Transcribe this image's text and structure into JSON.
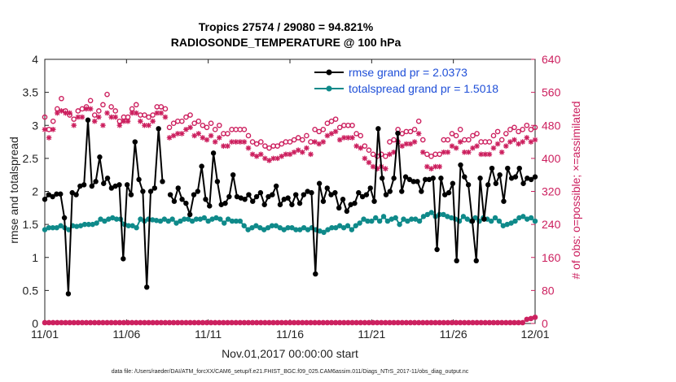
{
  "chart_data": {
    "type": "line",
    "title_line1": "Tropics 27574 / 29080 = 94.821%",
    "title_line2": "RADIOSONDE_TEMPERATURE @ 100 hPa",
    "ylabel_left": "rmse and totalspread",
    "ylabel_right": "# of obs: o=possible; ×=assimilated",
    "xlabel": "Nov.01,2017 00:00:00 start",
    "footer": "data file: /Users/raeder/DAI/ATM_forcXX/CAM6_setup/f.e21.FHIST_BGC.f09_025.CAM6assim.011/Diags_NTrS_2017-11/obs_diag_output.nc",
    "xlim": [
      0,
      30
    ],
    "ylim_left": [
      0,
      4
    ],
    "ylim_right": [
      0,
      640
    ],
    "x_tick_labels": [
      "11/01",
      "11/06",
      "11/11",
      "11/16",
      "11/21",
      "11/26",
      "12/01"
    ],
    "x_tick_values": [
      0,
      5,
      10,
      15,
      20,
      25,
      30
    ],
    "y_left_ticks": [
      "0",
      "0.5",
      "1",
      "1.5",
      "2",
      "2.5",
      "3",
      "3.5",
      "4"
    ],
    "y_right_ticks": [
      "0",
      "80",
      "160",
      "240",
      "320",
      "400",
      "480",
      "560",
      "640"
    ],
    "legend": [
      {
        "name": "rmse grand pr = 2.0373",
        "color": "#000000"
      },
      {
        "name": "totalspread grand pr = 1.5018",
        "color": "#0f8a8a"
      }
    ],
    "colors": {
      "rmse": "#000000",
      "spread": "#0f8a8a",
      "obs": "#cc1f5e"
    },
    "series": [
      {
        "name": "rmse",
        "values": [
          1.88,
          1.95,
          1.92,
          1.96,
          1.96,
          1.6,
          0.45,
          1.98,
          1.95,
          2.08,
          2.1,
          3.08,
          2.08,
          2.15,
          2.52,
          2.12,
          2.2,
          2.05,
          2.08,
          2.1,
          0.98,
          2.1,
          1.95,
          2.75,
          2.18,
          2.0,
          0.55,
          2.0,
          2.05,
          2.95,
          2.15,
          null,
          1.95,
          1.85,
          2.05,
          1.88,
          1.82,
          1.65,
          1.95,
          2.0,
          2.38,
          1.88,
          1.78,
          2.58,
          2.15,
          1.8,
          1.82,
          1.92,
          2.25,
          1.92,
          1.9,
          1.88,
          1.95,
          1.85,
          1.92,
          1.98,
          1.8,
          1.92,
          1.95,
          2.08,
          1.8,
          1.88,
          1.9,
          1.8,
          1.95,
          1.82,
          1.95,
          2.0,
          1.98,
          0.75,
          2.12,
          1.85,
          2.05,
          1.95,
          1.98,
          1.75,
          1.88,
          1.7,
          1.8,
          1.82,
          1.98,
          1.92,
          1.95,
          2.05,
          1.85,
          2.95,
          2.2,
          1.95,
          2.0,
          2.2,
          2.88,
          2.0,
          2.22,
          2.18,
          2.15,
          2.15,
          2.0,
          2.18,
          2.18,
          2.2,
          1.12,
          2.2,
          1.95,
          1.98,
          2.12,
          0.95,
          2.4,
          2.22,
          2.1,
          1.55,
          0.95,
          2.2,
          1.58,
          2.1,
          2.35,
          2.12,
          2.25,
          1.85,
          2.35,
          2.2,
          2.22,
          2.35,
          2.12,
          2.2,
          2.18,
          2.22
        ]
      },
      {
        "name": "totalspread",
        "values": [
          1.42,
          1.45,
          1.45,
          1.45,
          1.48,
          1.45,
          1.42,
          1.48,
          1.47,
          1.48,
          1.5,
          1.5,
          1.5,
          1.52,
          1.58,
          1.55,
          1.58,
          1.6,
          1.58,
          1.58,
          1.5,
          1.48,
          1.48,
          1.45,
          1.58,
          1.55,
          1.58,
          1.57,
          1.56,
          1.55,
          1.58,
          1.55,
          1.58,
          1.52,
          1.55,
          1.58,
          1.58,
          1.55,
          1.58,
          1.58,
          1.6,
          1.55,
          1.58,
          1.6,
          1.58,
          1.52,
          1.58,
          1.55,
          1.55,
          1.55,
          1.48,
          1.42,
          1.45,
          1.48,
          1.45,
          1.42,
          1.45,
          1.48,
          1.48,
          1.45,
          1.42,
          1.45,
          1.45,
          1.42,
          1.42,
          1.45,
          1.42,
          1.45,
          1.42,
          1.4,
          1.38,
          1.42,
          1.45,
          1.45,
          1.48,
          1.45,
          1.48,
          1.42,
          1.48,
          1.52,
          1.58,
          1.55,
          1.55,
          1.6,
          1.55,
          1.62,
          1.55,
          1.58,
          1.6,
          1.5,
          1.58,
          1.55,
          1.58,
          1.58,
          1.55,
          1.62,
          1.65,
          1.68,
          1.62,
          1.65,
          1.65,
          1.62,
          1.6,
          1.58,
          1.55,
          1.62,
          1.58,
          1.55,
          1.6,
          1.55,
          1.6,
          1.58,
          1.55,
          1.6,
          1.55,
          1.48,
          1.5,
          1.52,
          1.55,
          1.6,
          1.62,
          1.58,
          1.6,
          1.55
        ]
      },
      {
        "name": "possible",
        "values": [
          500,
          470,
          490,
          520,
          545,
          515,
          505,
          495,
          515,
          520,
          525,
          540,
          505,
          515,
          530,
          555,
          525,
          515,
          490,
          500,
          500,
          520,
          530,
          505,
          505,
          500,
          505,
          525,
          525,
          520,
          475,
          485,
          490,
          490,
          500,
          505,
          485,
          490,
          480,
          475,
          485,
          470,
          480,
          460,
          460,
          470,
          470,
          470,
          470,
          455,
          440,
          435,
          440,
          430,
          425,
          430,
          430,
          435,
          440,
          440,
          445,
          450,
          445,
          455,
          440,
          470,
          465,
          470,
          485,
          490,
          495,
          475,
          480,
          480,
          480,
          460,
          455,
          430,
          420,
          410,
          405,
          410,
          405,
          440,
          445,
          470,
          460,
          465,
          465,
          470,
          490,
          445,
          410,
          405,
          410,
          410,
          445,
          445,
          460,
          455,
          470,
          445,
          445,
          455,
          460,
          440,
          440,
          440,
          455,
          465,
          445,
          460,
          470,
          475,
          465,
          470,
          480,
          470,
          475
        ]
      },
      {
        "name": "assimilated",
        "values": [
          470,
          450,
          470,
          510,
          515,
          510,
          510,
          480,
          500,
          500,
          520,
          520,
          490,
          500,
          480,
          510,
          500,
          500,
          480,
          490,
          490,
          510,
          510,
          490,
          480,
          480,
          490,
          510,
          510,
          500,
          450,
          455,
          460,
          460,
          470,
          475,
          455,
          460,
          450,
          445,
          455,
          440,
          450,
          430,
          430,
          440,
          440,
          440,
          440,
          425,
          410,
          405,
          410,
          400,
          395,
          400,
          400,
          405,
          410,
          410,
          415,
          420,
          415,
          425,
          410,
          440,
          435,
          440,
          455,
          460,
          465,
          445,
          450,
          450,
          450,
          430,
          425,
          400,
          390,
          380,
          375,
          380,
          375,
          410,
          415,
          440,
          430,
          435,
          435,
          440,
          460,
          415,
          380,
          375,
          380,
          380,
          415,
          415,
          430,
          425,
          440,
          415,
          415,
          425,
          430,
          410,
          410,
          410,
          425,
          435,
          415,
          430,
          440,
          445,
          435,
          440,
          450,
          440,
          445
        ]
      },
      {
        "name": "possible_low",
        "values": [
          2,
          2,
          2,
          2,
          2,
          2,
          2,
          2,
          2,
          2,
          2,
          2,
          2,
          2,
          2,
          2,
          2,
          2,
          2,
          2,
          2,
          2,
          2,
          2,
          2,
          2,
          2,
          2,
          2,
          2,
          2,
          2,
          2,
          2,
          2,
          2,
          2,
          2,
          2,
          2,
          2,
          2,
          2,
          2,
          2,
          2,
          2,
          2,
          2,
          2,
          2,
          2,
          2,
          2,
          2,
          2,
          2,
          2,
          2,
          2,
          2,
          2,
          2,
          2,
          2,
          2,
          2,
          2,
          2,
          2,
          2,
          2,
          2,
          2,
          2,
          2,
          2,
          2,
          2,
          2,
          2,
          2,
          2,
          2,
          2,
          2,
          2,
          2,
          2,
          2,
          2,
          2,
          2,
          2,
          2,
          2,
          2,
          2,
          2,
          2,
          2,
          2,
          2,
          2,
          2,
          2,
          2,
          2,
          2,
          2,
          2,
          2,
          2,
          2,
          2,
          2,
          10,
          12,
          15
        ]
      }
    ]
  }
}
